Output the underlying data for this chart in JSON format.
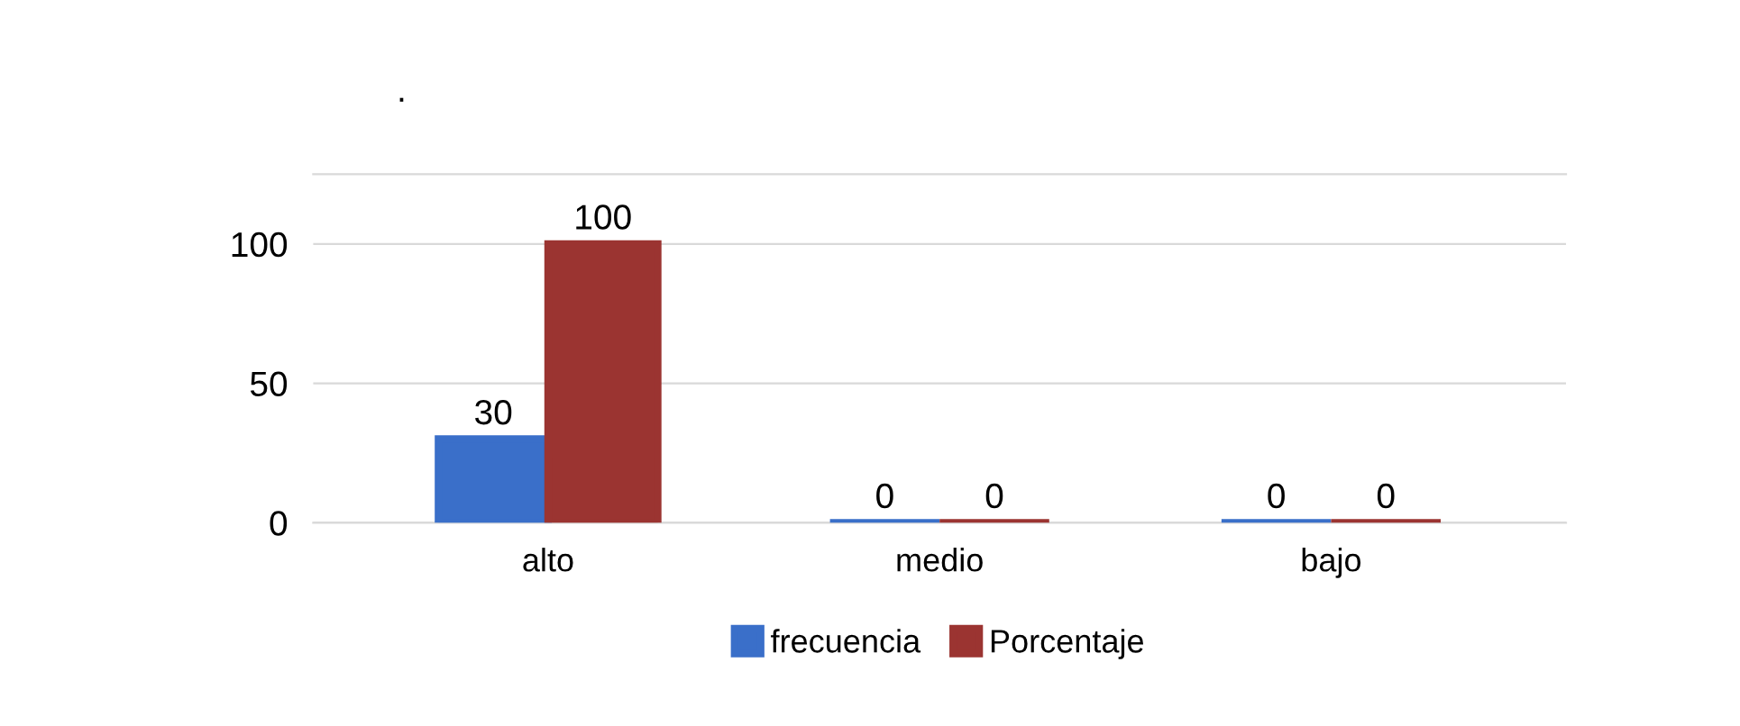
{
  "chart_data": {
    "type": "bar",
    "categories": [
      "alto",
      "medio",
      "bajo"
    ],
    "series": [
      {
        "name": "frecuencia",
        "color": "#3a6fc9",
        "values": [
          30,
          0,
          0
        ]
      },
      {
        "name": "Porcentaje",
        "color": "#9b3431",
        "values": [
          100,
          0,
          0
        ]
      }
    ],
    "ylim": [
      0,
      125
    ],
    "yticks": [
      0,
      50,
      100
    ],
    "grid": "y",
    "legend": "bottom",
    "data_labels": true,
    "annotations": [
      "."
    ]
  }
}
